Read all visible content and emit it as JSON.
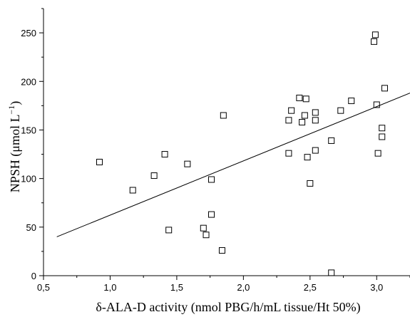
{
  "chart_data": {
    "type": "scatter",
    "title": "",
    "xlabel": "δ-ALA-D activity (nmol PBG/h/mL tissue/Ht 50%)",
    "ylabel": "NPSH (μmol L⁻¹)",
    "xlim": [
      0.5,
      3.25
    ],
    "ylim": [
      0,
      275
    ],
    "x_ticks": [
      "0,5",
      "1,0",
      "1,5",
      "2,0",
      "2,5",
      "3,0"
    ],
    "x_tick_values": [
      0.5,
      1.0,
      1.5,
      2.0,
      2.5,
      3.0
    ],
    "y_ticks": [
      "0",
      "50",
      "100",
      "150",
      "200",
      "250"
    ],
    "y_tick_values": [
      0,
      50,
      100,
      150,
      200,
      250
    ],
    "grid": false,
    "legend": "none",
    "marker": "open-square",
    "series": [
      {
        "points": [
          [
            0.92,
            117
          ],
          [
            1.17,
            88
          ],
          [
            1.33,
            103
          ],
          [
            1.41,
            125
          ],
          [
            1.44,
            47
          ],
          [
            1.58,
            115
          ],
          [
            1.7,
            49
          ],
          [
            1.72,
            42
          ],
          [
            1.76,
            99
          ],
          [
            1.76,
            63
          ],
          [
            1.84,
            26
          ],
          [
            1.85,
            165
          ],
          [
            2.34,
            160
          ],
          [
            2.34,
            126
          ],
          [
            2.36,
            170
          ],
          [
            2.42,
            183
          ],
          [
            2.44,
            158
          ],
          [
            2.46,
            165
          ],
          [
            2.47,
            182
          ],
          [
            2.48,
            122
          ],
          [
            2.5,
            95
          ],
          [
            2.54,
            168
          ],
          [
            2.54,
            160
          ],
          [
            2.54,
            129
          ],
          [
            2.66,
            139
          ],
          [
            2.66,
            3
          ],
          [
            2.73,
            170
          ],
          [
            2.81,
            180
          ],
          [
            2.98,
            241
          ],
          [
            2.99,
            248
          ],
          [
            3.0,
            176
          ],
          [
            3.01,
            126
          ],
          [
            3.04,
            152
          ],
          [
            3.04,
            143
          ],
          [
            3.06,
            193
          ]
        ]
      }
    ],
    "regression_line": {
      "x": [
        0.6,
        3.25
      ],
      "y": [
        40,
        188
      ]
    }
  }
}
